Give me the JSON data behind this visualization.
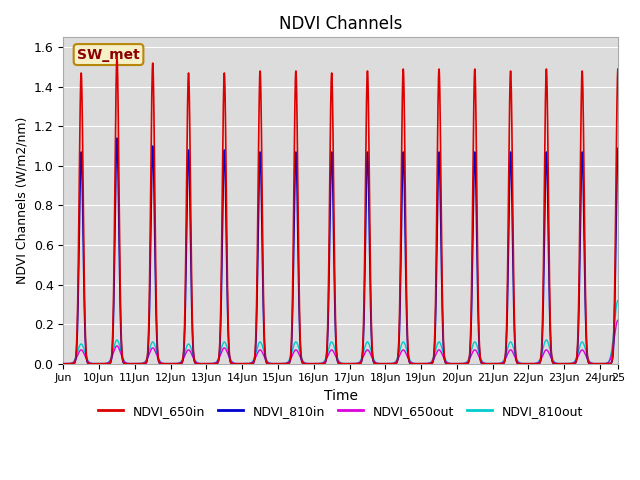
{
  "title": "NDVI Channels",
  "xlabel": "Time",
  "ylabel": "NDVI Channels (W/m2/nm)",
  "ylim": [
    0,
    1.65
  ],
  "xlim": [
    0,
    15.5
  ],
  "bg_color": "#dcdcdc",
  "annotation_text": "SW_met",
  "annotation_facecolor": "#f5f0c8",
  "annotation_edgecolor": "#b8860b",
  "annotation_textcolor": "#8b0000",
  "lines": {
    "NDVI_650in": {
      "color": "#dd0000",
      "lw": 1.2
    },
    "NDVI_810in": {
      "color": "#0000cc",
      "lw": 1.2
    },
    "NDVI_650out": {
      "color": "#dd00dd",
      "lw": 1.0
    },
    "NDVI_810out": {
      "color": "#00cccc",
      "lw": 1.0
    }
  },
  "legend_dash_colors": [
    "#dd0000",
    "#0000cc",
    "#dd00dd",
    "#00cccc"
  ],
  "legend_labels": [
    "NDVI_650in",
    "NDVI_810in",
    "NDVI_650out",
    "NDVI_810out"
  ],
  "xtick_labels": [
    "Jun",
    "10Jun",
    "11Jun",
    "12Jun",
    "13Jun",
    "14Jun",
    "15Jun",
    "16Jun",
    "17Jun",
    "18Jun",
    "19Jun",
    "20Jun",
    "21Jun",
    "22Jun",
    "23Jun",
    "24Jun",
    "25"
  ],
  "xtick_positions": [
    0,
    1,
    2,
    3,
    4,
    5,
    6,
    7,
    8,
    9,
    10,
    11,
    12,
    13,
    14,
    15,
    15.5
  ],
  "ytick_labels": [
    "0.0",
    "0.2",
    "0.4",
    "0.6",
    "0.8",
    "1.0",
    "1.2",
    "1.4",
    "1.6"
  ],
  "ytick_positions": [
    0.0,
    0.2,
    0.4,
    0.6,
    0.8,
    1.0,
    1.2,
    1.4,
    1.6
  ],
  "peaks_650in": [
    1.47,
    1.55,
    1.52,
    1.47,
    1.47,
    1.48,
    1.48,
    1.47,
    1.48,
    1.49,
    1.49,
    1.49,
    1.48,
    1.49,
    1.48,
    1.49
  ],
  "peaks_810in": [
    1.07,
    1.14,
    1.1,
    1.08,
    1.08,
    1.07,
    1.07,
    1.07,
    1.07,
    1.07,
    1.07,
    1.07,
    1.07,
    1.07,
    1.07,
    1.09
  ],
  "peaks_650out": [
    0.07,
    0.09,
    0.08,
    0.07,
    0.08,
    0.07,
    0.07,
    0.07,
    0.07,
    0.07,
    0.07,
    0.07,
    0.07,
    0.07,
    0.07,
    0.22
  ],
  "peaks_810out": [
    0.1,
    0.12,
    0.11,
    0.1,
    0.11,
    0.11,
    0.11,
    0.11,
    0.11,
    0.11,
    0.11,
    0.11,
    0.11,
    0.12,
    0.11,
    0.32
  ],
  "peak_sigma_in": 0.055,
  "peak_sigma_out": 0.1,
  "figsize": [
    6.4,
    4.8
  ],
  "dpi": 100
}
